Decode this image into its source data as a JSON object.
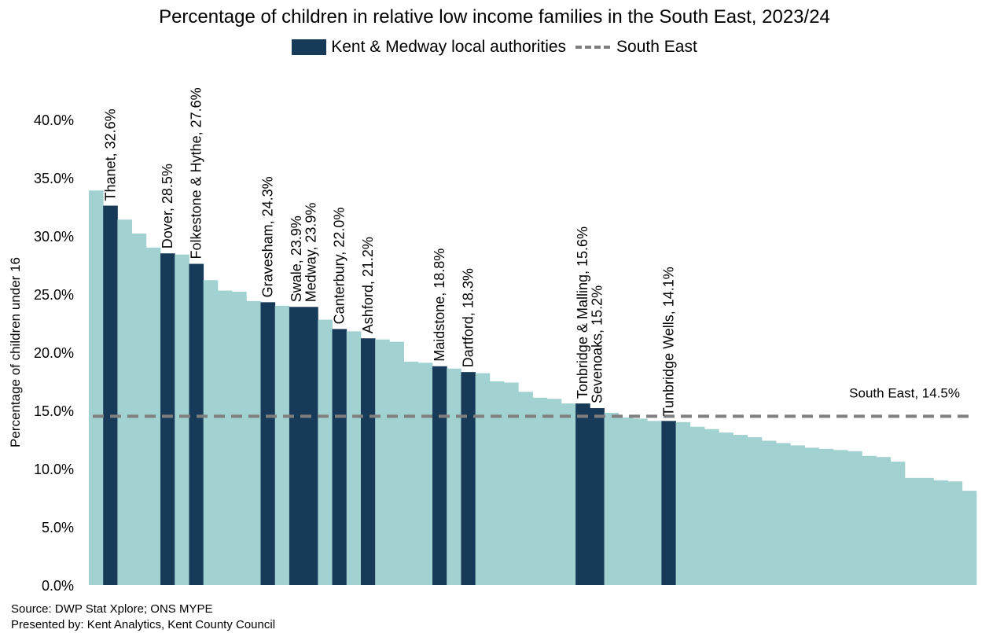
{
  "title": "Percentage of children in relative low income families in the South East, 2023/24",
  "legend": {
    "kent_label": "Kent & Medway local authorities",
    "se_label": "South East"
  },
  "colors": {
    "kent": "#173A58",
    "other": "#A1D1D1",
    "reference": "#7F7F7F"
  },
  "footer": {
    "source": "Source: DWP Stat Xplore; ONS MYPE",
    "presented": "Presented by: Kent Analytics, Kent County   Council"
  },
  "chart_data": {
    "type": "bar",
    "ylabel": "Percentage of children under 16",
    "ylim": [
      0,
      40
    ],
    "yticks": [
      "0.0%",
      "5.0%",
      "10.0%",
      "15.0%",
      "20.0%",
      "25.0%",
      "30.0%",
      "35.0%",
      "40.0%"
    ],
    "values": [
      33.9,
      32.6,
      31.4,
      30.2,
      29.0,
      28.5,
      28.4,
      27.6,
      26.2,
      25.3,
      25.2,
      24.4,
      24.3,
      24.0,
      23.9,
      23.9,
      22.8,
      22.0,
      21.8,
      21.2,
      21.1,
      20.9,
      19.2,
      19.1,
      18.8,
      18.6,
      18.3,
      18.2,
      17.5,
      17.4,
      16.6,
      16.1,
      16.0,
      15.6,
      15.6,
      15.2,
      14.8,
      14.4,
      14.3,
      14.1,
      14.1,
      14.0,
      13.6,
      13.4,
      13.1,
      12.9,
      12.7,
      12.4,
      12.2,
      12.0,
      11.8,
      11.7,
      11.6,
      11.5,
      11.1,
      11.0,
      10.6,
      9.2,
      9.2,
      9.0,
      8.9,
      8.1
    ],
    "kent_highlights": [
      {
        "index": 1,
        "label": "Thanet, 32.6%"
      },
      {
        "index": 5,
        "label": "Dover, 28.5%"
      },
      {
        "index": 7,
        "label": "Folkestone & Hythe, 27.6%"
      },
      {
        "index": 12,
        "label": "Gravesham, 24.3%"
      },
      {
        "index": 14,
        "label": "Swale, 23.9%"
      },
      {
        "index": 15,
        "label": "Medway, 23.9%"
      },
      {
        "index": 17,
        "label": "Canterbury, 22.0%"
      },
      {
        "index": 19,
        "label": "Ashford, 21.2%"
      },
      {
        "index": 24,
        "label": "Maidstone, 18.8%"
      },
      {
        "index": 26,
        "label": "Dartford, 18.3%"
      },
      {
        "index": 34,
        "label": "Tonbridge & Malling, 15.6%"
      },
      {
        "index": 35,
        "label": "Sevenoaks, 15.2%"
      },
      {
        "index": 40,
        "label": "Tunbridge Wells, 14.1%"
      }
    ],
    "reference_line": {
      "name": "South East",
      "value": 14.5,
      "label": "South East, 14.5%"
    }
  }
}
